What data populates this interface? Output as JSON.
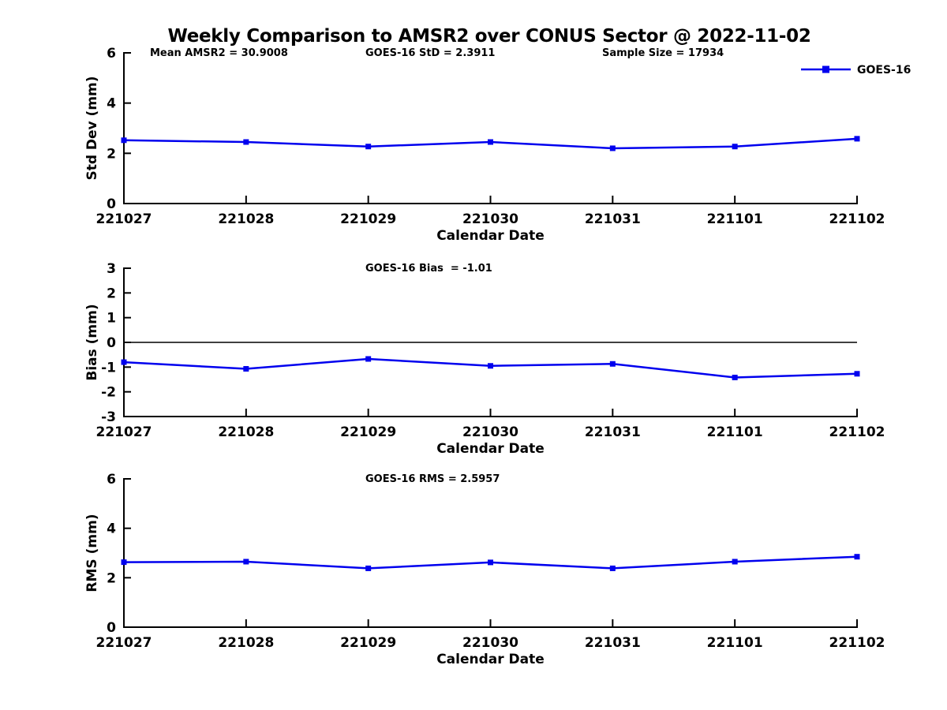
{
  "title": "Weekly Comparison to AMSR2 over CONUS Sector @ 2022-11-02",
  "legend": {
    "label": "GOES-16",
    "position": "top-right"
  },
  "colors": {
    "series": "#0000ee",
    "axis": "#000000",
    "text": "#000000",
    "background": "#ffffff"
  },
  "chart_data": [
    {
      "name": "std-dev",
      "type": "line",
      "ylabel": "Std Dev (mm)",
      "xlabel": "Calendar Date",
      "ylim": [
        0,
        6
      ],
      "yticks": [
        0,
        2,
        4,
        6
      ],
      "grid": false,
      "legend_visible": true,
      "categories": [
        "221027",
        "221028",
        "221029",
        "221030",
        "221031",
        "221101",
        "221102"
      ],
      "series": [
        {
          "name": "GOES-16",
          "values": [
            2.52,
            2.45,
            2.27,
            2.45,
            2.2,
            2.27,
            2.58
          ]
        }
      ],
      "annotations": [
        "Mean AMSR2 = 30.9008",
        "GOES-16 StD = 2.3911",
        "Sample Size = 17934"
      ],
      "zero_line": false
    },
    {
      "name": "bias",
      "type": "line",
      "ylabel": "Bias (mm)",
      "xlabel": "Calendar Date",
      "ylim": [
        -3,
        3
      ],
      "yticks": [
        -3,
        -2,
        -1,
        0,
        1,
        2,
        3
      ],
      "grid": false,
      "legend_visible": false,
      "categories": [
        "221027",
        "221028",
        "221029",
        "221030",
        "221031",
        "221101",
        "221102"
      ],
      "series": [
        {
          "name": "GOES-16",
          "values": [
            -0.8,
            -1.07,
            -0.67,
            -0.95,
            -0.87,
            -1.42,
            -1.27
          ]
        }
      ],
      "annotations": [
        "GOES-16 Bias  = -1.01"
      ],
      "zero_line": true
    },
    {
      "name": "rms",
      "type": "line",
      "ylabel": "RMS (mm)",
      "xlabel": "Calendar Date",
      "ylim": [
        0,
        6
      ],
      "yticks": [
        0,
        2,
        4,
        6
      ],
      "grid": false,
      "legend_visible": false,
      "categories": [
        "221027",
        "221028",
        "221029",
        "221030",
        "221031",
        "221101",
        "221102"
      ],
      "series": [
        {
          "name": "GOES-16",
          "values": [
            2.63,
            2.65,
            2.38,
            2.62,
            2.38,
            2.65,
            2.85
          ]
        }
      ],
      "annotations": [
        "GOES-16 RMS = 2.5957"
      ],
      "zero_line": false
    }
  ]
}
